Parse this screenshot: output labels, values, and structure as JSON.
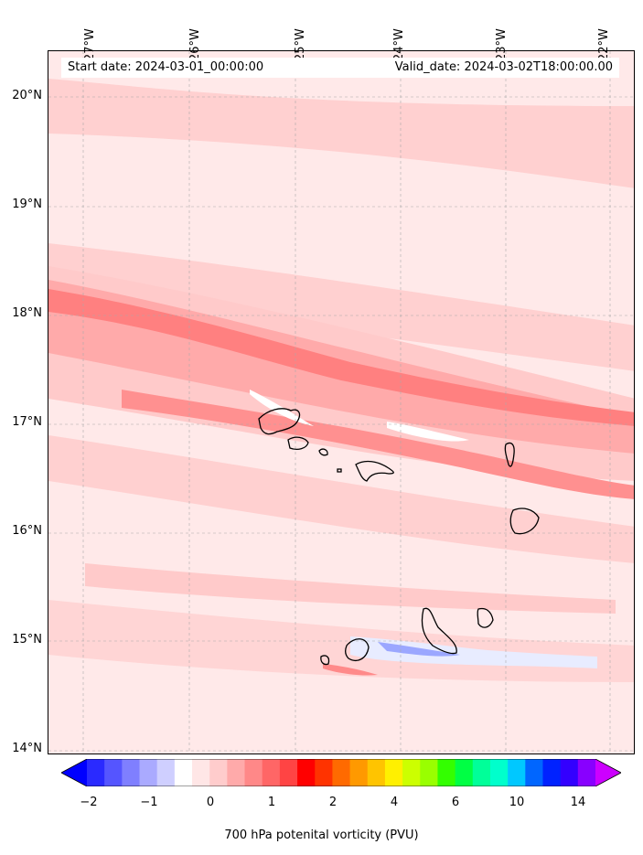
{
  "header": {
    "start_date": "Start date: 2024-03-01_00:00:00",
    "valid_date": "Valid_date: 2024-03-02T18:00:00.00"
  },
  "axes": {
    "longitude_labels": [
      "27°W",
      "26°W",
      "25°W",
      "24°W",
      "23°W",
      "22°W"
    ],
    "latitude_labels": [
      "20°N",
      "19°N",
      "18°N",
      "17°N",
      "16°N",
      "15°N",
      "14°N"
    ]
  },
  "colorbar": {
    "label": "700 hPa potenital vorticity (PVU)",
    "tick_labels": [
      "−2",
      "−1",
      "0",
      "1",
      "2",
      "4",
      "6",
      "10",
      "14"
    ],
    "colors": [
      "#0000ff",
      "#2a2aff",
      "#5555ff",
      "#7f7fff",
      "#aaaaff",
      "#cfcfff",
      "#ffffff",
      "#ffe6e6",
      "#ffcccc",
      "#ffaaaa",
      "#ff8888",
      "#ff6666",
      "#ff4444",
      "#ff0000",
      "#ff3300",
      "#ff6a00",
      "#ff9900",
      "#ffc400",
      "#fff000",
      "#ccff00",
      "#99ff00",
      "#33ff00",
      "#00ff44",
      "#00ff99",
      "#00ffcc",
      "#00c8ff",
      "#0066ff",
      "#0022ff",
      "#3300ff",
      "#8800ff",
      "#cc00ff"
    ]
  },
  "colors": {
    "background": "#ffe8e8",
    "light_pink": "#ffcfcf",
    "mid_pink": "#ffaaaa",
    "red": "#ff7777",
    "pale_blue": "#e8ecff",
    "blue_core": "#9aa6ff"
  }
}
